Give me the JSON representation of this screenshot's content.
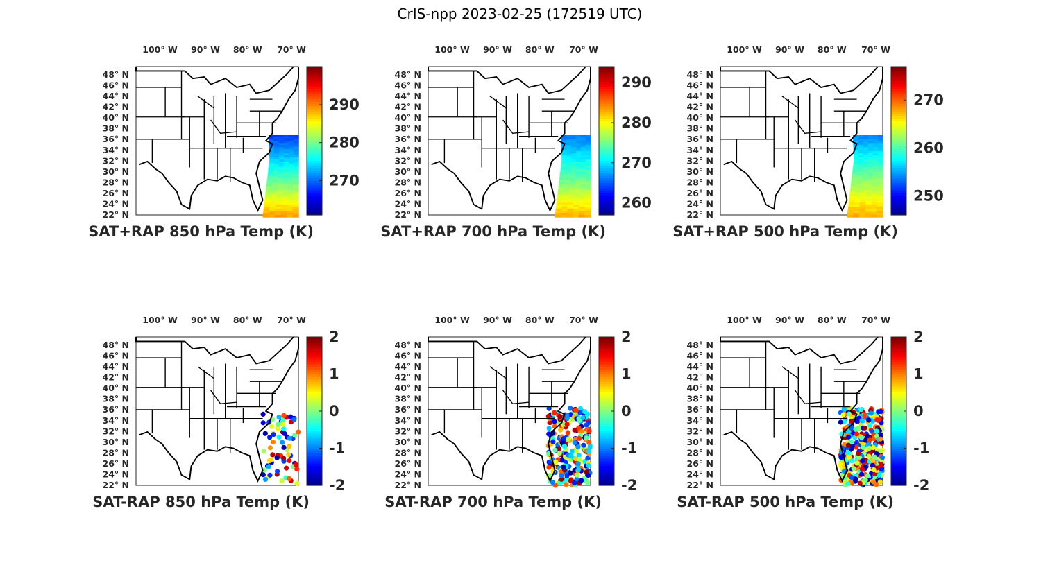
{
  "figure_title": "CrIS-npp 2023-02-25 (172519 UTC)",
  "colors": {
    "jet": [
      "#00008f",
      "#0000ff",
      "#0080ff",
      "#00ffff",
      "#80ff80",
      "#ffff00",
      "#ff8000",
      "#ff0000",
      "#800000"
    ],
    "coast": "#000000",
    "axis": "#262626"
  },
  "chart_data": [
    {
      "type": "heatmap",
      "title": "SAT+RAP 850 hPa Temp (K)",
      "lon_ticks": [
        "100° W",
        "90° W",
        "80° W",
        "70° W"
      ],
      "lat_ticks": [
        "48° N",
        "46° N",
        "44° N",
        "42° N",
        "40° N",
        "38° N",
        "36° N",
        "34° N",
        "32° N",
        "30° N",
        "28° N",
        "26° N",
        "24° N",
        "22° N"
      ],
      "colorbar": {
        "range": [
          261,
          300
        ],
        "ticks": [
          270,
          280,
          290
        ]
      },
      "swath_values": {
        "north": 268,
        "mid": 278,
        "south": 289
      }
    },
    {
      "type": "heatmap",
      "title": "SAT+RAP 700 hPa Temp (K)",
      "lon_ticks": [
        "100° W",
        "90° W",
        "80° W",
        "70° W"
      ],
      "lat_ticks": [
        "48° N",
        "46° N",
        "44° N",
        "42° N",
        "40° N",
        "38° N",
        "36° N",
        "34° N",
        "32° N",
        "30° N",
        "28° N",
        "26° N",
        "24° N",
        "22° N"
      ],
      "colorbar": {
        "range": [
          257,
          294
        ],
        "ticks": [
          260,
          270,
          280,
          290
        ]
      },
      "swath_values": {
        "north": 266,
        "mid": 274,
        "south": 283
      }
    },
    {
      "type": "heatmap",
      "title": "SAT+RAP 500 hPa Temp (K)",
      "lon_ticks": [
        "100° W",
        "90° W",
        "80° W",
        "70° W"
      ],
      "lat_ticks": [
        "48° N",
        "46° N",
        "44° N",
        "42° N",
        "40° N",
        "38° N",
        "36° N",
        "34° N",
        "32° N",
        "30° N",
        "28° N",
        "26° N",
        "24° N",
        "22° N"
      ],
      "colorbar": {
        "range": [
          246,
          277
        ],
        "ticks": [
          250,
          260,
          270
        ]
      },
      "swath_values": {
        "north": 254,
        "mid": 261,
        "south": 268
      }
    },
    {
      "type": "scatter",
      "title": "SAT-RAP 850 hPa Temp (K)",
      "lon_ticks": [
        "100° W",
        "90° W",
        "80° W",
        "70° W"
      ],
      "lat_ticks": [
        "48° N",
        "46° N",
        "44° N",
        "42° N",
        "40° N",
        "38° N",
        "36° N",
        "34° N",
        "32° N",
        "30° N",
        "28° N",
        "26° N",
        "24° N",
        "22° N"
      ],
      "colorbar": {
        "range": [
          -2,
          2
        ],
        "ticks": [
          2,
          1,
          0,
          -1,
          -2
        ]
      },
      "extent": "sparse"
    },
    {
      "type": "scatter",
      "title": "SAT-RAP 700 hPa Temp (K)",
      "lon_ticks": [
        "100° W",
        "90° W",
        "80° W",
        "70° W"
      ],
      "lat_ticks": [
        "48° N",
        "46° N",
        "44° N",
        "42° N",
        "40° N",
        "38° N",
        "36° N",
        "34° N",
        "32° N",
        "30° N",
        "28° N",
        "26° N",
        "24° N",
        "22° N"
      ],
      "colorbar": {
        "range": [
          -2,
          2
        ],
        "ticks": [
          2,
          1,
          0,
          -1,
          -2
        ]
      },
      "extent": "medium"
    },
    {
      "type": "scatter",
      "title": "SAT-RAP 500 hPa Temp (K)",
      "lon_ticks": [
        "100° W",
        "90° W",
        "80° W",
        "70° W"
      ],
      "lat_ticks": [
        "48° N",
        "46° N",
        "44° N",
        "42° N",
        "40° N",
        "38° N",
        "36° N",
        "34° N",
        "32° N",
        "30° N",
        "28° N",
        "26° N",
        "24° N",
        "22° N"
      ],
      "colorbar": {
        "range": [
          -2,
          2
        ],
        "ticks": [
          2,
          1,
          0,
          -1,
          -2
        ]
      },
      "extent": "dense"
    }
  ]
}
